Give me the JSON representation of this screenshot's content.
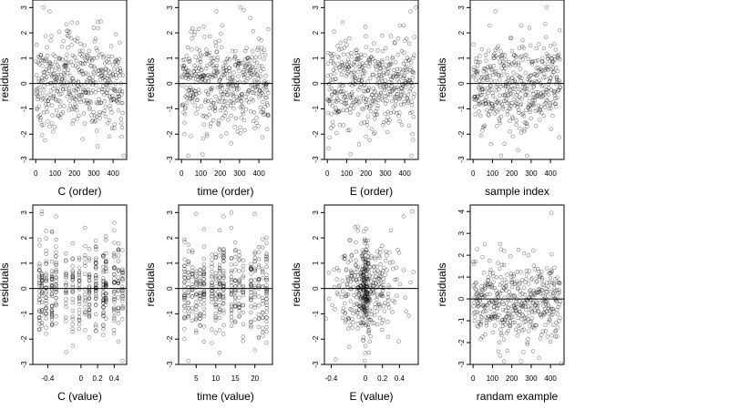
{
  "chart_data": [
    {
      "type": "scatter",
      "xlabel": "C (order)",
      "ylabel": "residuals",
      "xlim": [
        -15,
        470
      ],
      "ylim": [
        -3,
        3.3
      ],
      "xticks": [
        0,
        100,
        200,
        300,
        400
      ],
      "yticks": [
        -3,
        -2,
        -1,
        0,
        1,
        2,
        3
      ],
      "n_points": 450,
      "x_kind": "index",
      "center": 0,
      "hline": 0,
      "points": [
        [
          40,
          3.0
        ],
        [
          72,
          2.85
        ],
        [
          163,
          1.9
        ],
        [
          215,
          2.4
        ],
        [
          455,
          -2.85
        ],
        [
          380,
          -2.1
        ],
        [
          300,
          2.2
        ],
        [
          90,
          -1.9
        ]
      ]
    },
    {
      "type": "scatter",
      "xlabel": "time (order)",
      "ylabel": "residuals",
      "xlim": [
        -15,
        470
      ],
      "ylim": [
        -3,
        3.3
      ],
      "xticks": [
        0,
        100,
        200,
        300,
        400
      ],
      "yticks": [
        -3,
        -2,
        -1,
        0,
        1,
        2,
        3
      ],
      "n_points": 450,
      "x_kind": "index",
      "center": 0,
      "hline": 0,
      "points": [
        [
          180,
          2.85
        ],
        [
          305,
          3.0
        ],
        [
          35,
          -2.85
        ],
        [
          15,
          -2.0
        ],
        [
          210,
          2.3
        ],
        [
          290,
          -1.9
        ]
      ]
    },
    {
      "type": "scatter",
      "xlabel": "E (order)",
      "ylabel": "residuals",
      "xlim": [
        -15,
        470
      ],
      "ylim": [
        -3,
        3.3
      ],
      "xticks": [
        0,
        100,
        200,
        300,
        400
      ],
      "yticks": [
        -3,
        -2,
        -1,
        0,
        1,
        2,
        3
      ],
      "n_points": 450,
      "x_kind": "index",
      "center": 0,
      "hline": 0,
      "points": [
        [
          458,
          3.0
        ],
        [
          430,
          2.85
        ],
        [
          120,
          -2.8
        ],
        [
          395,
          2.3
        ],
        [
          200,
          -2.1
        ],
        [
          440,
          -2.0
        ]
      ]
    },
    {
      "type": "scatter",
      "xlabel": "sample index",
      "ylabel": "residuals",
      "xlim": [
        -15,
        470
      ],
      "ylim": [
        -3,
        3.3
      ],
      "xticks": [
        0,
        100,
        200,
        300,
        400
      ],
      "yticks": [
        -3,
        -2,
        -1,
        0,
        1,
        2,
        3
      ],
      "n_points": 450,
      "x_kind": "index",
      "center": 0,
      "hline": 0,
      "points": [
        [
          380,
          3.0
        ],
        [
          115,
          2.85
        ],
        [
          250,
          2.3
        ],
        [
          145,
          -2.85
        ],
        [
          205,
          -2.1
        ],
        [
          190,
          -1.9
        ]
      ]
    },
    {
      "type": "scatter",
      "xlabel": "C (value)",
      "ylabel": "residuals",
      "xlim": [
        -0.58,
        0.55
      ],
      "ylim": [
        -3,
        3.3
      ],
      "xticks": [
        -0.4,
        0.0,
        0.2,
        0.4
      ],
      "yticks": [
        -3,
        -2,
        -1,
        0,
        1,
        2,
        3
      ],
      "n_points": 450,
      "x_kind": "clusters",
      "x_clusters": [
        -0.5,
        -0.47,
        -0.42,
        -0.35,
        -0.3,
        -0.18,
        -0.1,
        -0.02,
        0.05,
        0.1,
        0.18,
        0.27,
        0.3,
        0.4,
        0.45,
        0.5
      ],
      "center": 0,
      "hline": 0,
      "points": [
        [
          -0.47,
          3.05
        ],
        [
          -0.3,
          2.85
        ],
        [
          0.05,
          2.4
        ],
        [
          0.5,
          -2.85
        ],
        [
          0.45,
          -2.1
        ],
        [
          0.4,
          2.3
        ]
      ]
    },
    {
      "type": "scatter",
      "xlabel": "time (value)",
      "ylabel": "residuals",
      "xlim": [
        0.5,
        24.5
      ],
      "ylim": [
        -3,
        3.3
      ],
      "xticks": [
        5,
        10,
        15,
        20
      ],
      "yticks": [
        -3,
        -2,
        -1,
        0,
        1,
        2,
        3
      ],
      "n_points": 450,
      "x_kind": "clusters",
      "x_clusters": [
        2,
        3,
        4,
        5,
        6,
        7,
        9,
        10,
        11,
        12,
        14,
        15,
        16,
        17,
        19,
        20,
        21,
        22,
        23
      ],
      "center": 0,
      "hline": 0,
      "points": [
        [
          12,
          2.85
        ],
        [
          14,
          3.0
        ],
        [
          3,
          -2.85
        ],
        [
          2,
          -2.0
        ],
        [
          11,
          2.3
        ],
        [
          17,
          -1.9
        ]
      ]
    },
    {
      "type": "scatter",
      "xlabel": "E (value)",
      "ylabel": "residuals",
      "xlim": [
        -0.48,
        0.62
      ],
      "ylim": [
        -3,
        3.3
      ],
      "xticks": [
        -0.4,
        0.0,
        0.2,
        0.4
      ],
      "yticks": [
        -3,
        -2,
        -1,
        0,
        1,
        2,
        3
      ],
      "n_points": 450,
      "x_kind": "concentrated",
      "x_focus": 0.0,
      "center": 0,
      "hline": 0,
      "points": [
        [
          0.55,
          3.05
        ],
        [
          0.45,
          2.85
        ],
        [
          -0.35,
          -2.8
        ],
        [
          0.3,
          2.3
        ],
        [
          0.05,
          -2.1
        ]
      ]
    },
    {
      "type": "scatter",
      "xlabel": "randam example",
      "ylabel": "residuals",
      "xlim": [
        -15,
        470
      ],
      "ylim": [
        -3,
        4.3
      ],
      "xticks": [
        0,
        100,
        200,
        300,
        400
      ],
      "yticks": [
        -3,
        -2,
        -1,
        0,
        1,
        2,
        3,
        4
      ],
      "n_points": 450,
      "x_kind": "index",
      "center": -0.15,
      "hline": 0,
      "points": [
        [
          405,
          3.95
        ],
        [
          60,
          2.5
        ],
        [
          160,
          2.2
        ],
        [
          285,
          2.0
        ],
        [
          160,
          -2.85
        ],
        [
          455,
          -2.95
        ],
        [
          140,
          -2.6
        ],
        [
          310,
          -2.4
        ]
      ]
    }
  ]
}
